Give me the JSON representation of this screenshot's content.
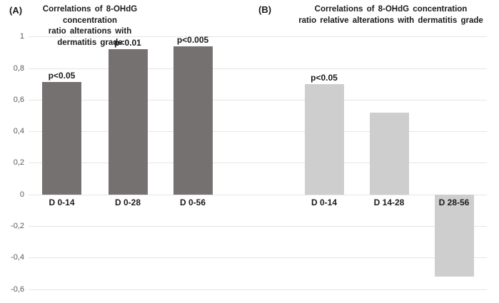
{
  "figure": {
    "panel_a_tag": "(A)",
    "panel_b_tag": "(B)",
    "axis": {
      "tick_label_color": "#595959",
      "gridline_color": "#e5e5e5"
    }
  },
  "chart_data": [
    {
      "type": "bar",
      "panel": "(A)",
      "title": "Correlations of 8-OHdG concentration ratio alterations with dermatitis grade",
      "title_lines": [
        "Correlations of 8-OHdG concentration",
        "ratio alterations with dermatitis grade"
      ],
      "categories": [
        "D 0-14",
        "D 0-28",
        "D 0-56"
      ],
      "values": [
        0.71,
        0.92,
        0.94
      ],
      "annotations": [
        "p<0.05",
        "p<0.01",
        "p<0.005"
      ],
      "bar_color": "#767171",
      "ylim": [
        -0.6,
        1
      ],
      "ytick_labels": [
        "1",
        "0,8",
        "0,6",
        "0,4",
        "0,2",
        "0",
        "-0,2",
        "-0,4",
        "-0,6"
      ],
      "ytick_values": [
        1,
        0.8,
        0.6,
        0.4,
        0.2,
        0,
        -0.2,
        -0.4,
        -0.6
      ],
      "grid": true,
      "legend": "none"
    },
    {
      "type": "bar",
      "panel": "(B)",
      "title": "Correlations of 8-OHdG concentration ratio relative alterations with dermatitis grade",
      "title_lines": [
        "Correlations of 8-OHdG concentration",
        "ratio relative alterations with dermatitis grade"
      ],
      "categories": [
        "D 0-14",
        "D 14-28",
        "D 28-56"
      ],
      "values": [
        0.7,
        0.52,
        -0.52
      ],
      "annotations": [
        "p<0.05",
        "",
        ""
      ],
      "bar_color": "#cecece",
      "ylim": [
        -0.6,
        1
      ],
      "ytick_labels": [
        "1",
        "0,8",
        "0,6",
        "0,4",
        "0,2",
        "0",
        "-0,2",
        "-0,4",
        "-0,6"
      ],
      "ytick_values": [
        1,
        0.8,
        0.6,
        0.4,
        0.2,
        0,
        -0.2,
        -0.4,
        -0.6
      ],
      "grid": true,
      "legend": "none"
    }
  ]
}
